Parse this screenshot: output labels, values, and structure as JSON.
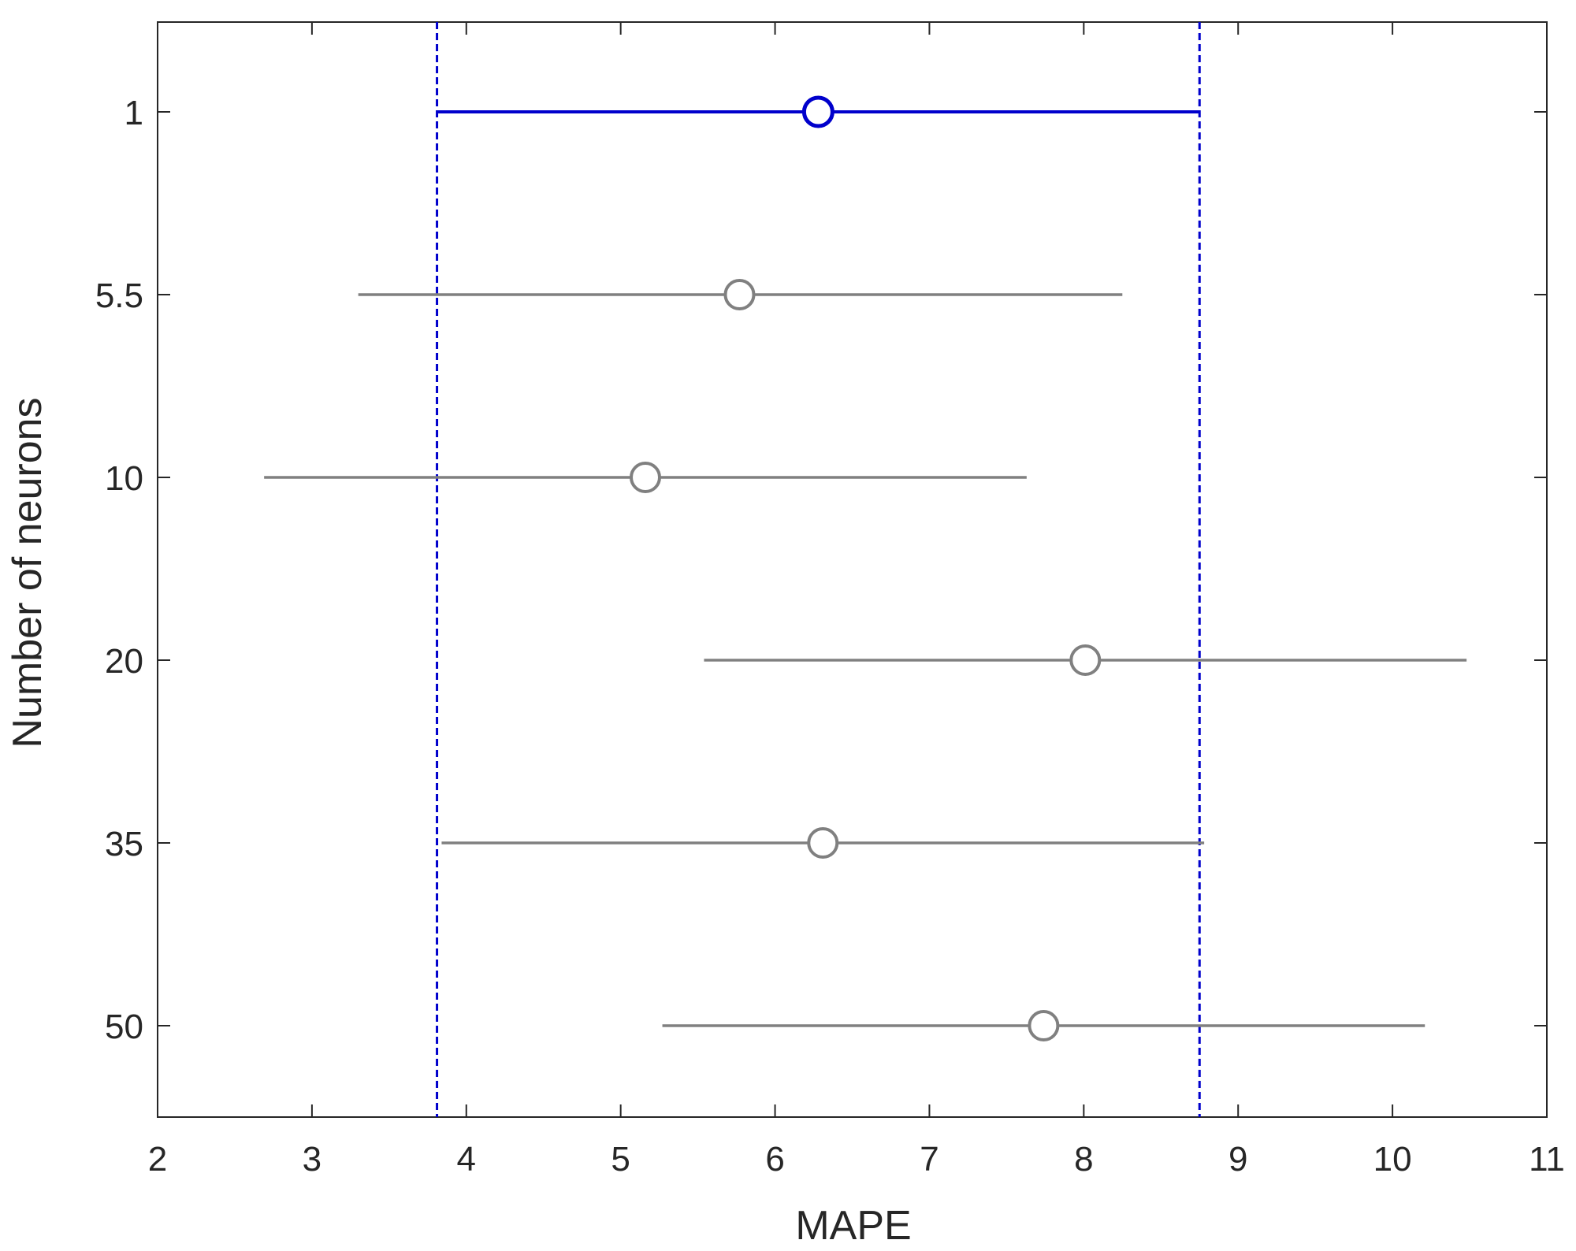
{
  "chart_data": {
    "type": "scatter",
    "subtype": "multiple-comparison-intervals",
    "title": "",
    "xlabel": "MAPE",
    "ylabel": "Number of neurons",
    "xlim": [
      2,
      11
    ],
    "xticks": [
      2,
      3,
      4,
      5,
      6,
      7,
      8,
      9,
      10,
      11
    ],
    "grid": false,
    "legend": "none",
    "groups": [
      {
        "label": "1",
        "mean": 6.28,
        "lower": 3.81,
        "upper": 8.75,
        "highlight": true
      },
      {
        "label": "5.5",
        "mean": 5.77,
        "lower": 3.3,
        "upper": 8.25,
        "highlight": false
      },
      {
        "label": "10",
        "mean": 5.16,
        "lower": 2.69,
        "upper": 7.63,
        "highlight": false
      },
      {
        "label": "20",
        "mean": 8.01,
        "lower": 5.54,
        "upper": 10.48,
        "highlight": false
      },
      {
        "label": "35",
        "mean": 6.31,
        "lower": 3.84,
        "upper": 8.78,
        "highlight": false
      },
      {
        "label": "50",
        "mean": 7.74,
        "lower": 5.27,
        "upper": 10.21,
        "highlight": false
      }
    ],
    "reference_lines": [
      3.81,
      8.75
    ],
    "colors": {
      "highlight": "#0000cc",
      "default": "#808080",
      "axes": "#262626"
    }
  }
}
